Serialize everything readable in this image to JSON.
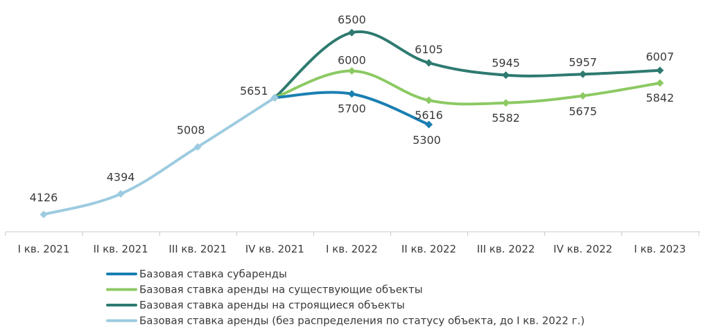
{
  "chart_data": {
    "type": "line",
    "categories": [
      "I кв. 2021",
      "II кв. 2021",
      "III кв. 2021",
      "IV кв. 2021",
      "I кв. 2022",
      "II кв. 2022",
      "III кв. 2022",
      "IV кв. 2022",
      "I кв. 2023"
    ],
    "series": [
      {
        "name": "Базовая ставка субаренды",
        "color": "#1a7fb2",
        "values": [
          null,
          null,
          null,
          5651,
          5700,
          5300,
          null,
          null,
          null
        ],
        "labels": [
          null,
          null,
          null,
          null,
          "5700",
          "5300",
          null,
          null,
          null
        ]
      },
      {
        "name": "Базовая ставка аренды на существующие объекты",
        "color": "#8cc963",
        "values": [
          null,
          null,
          null,
          5651,
          6000,
          5616,
          5582,
          5675,
          5842
        ],
        "labels": [
          null,
          null,
          null,
          null,
          "6000",
          "5616",
          "5582",
          "5675",
          "5842"
        ]
      },
      {
        "name": "Базовая ставка аренды на строящиеся объекты",
        "color": "#2e7a70",
        "values": [
          null,
          null,
          null,
          5651,
          6500,
          6105,
          5945,
          5957,
          6007
        ],
        "labels": [
          null,
          null,
          null,
          null,
          "6500",
          "6105",
          "5945",
          "5957",
          "6007"
        ]
      },
      {
        "name": "Базовая ставка аренды (без распределения по статусу объекта, до I кв. 2022 г.)",
        "color": "#9dcbe0",
        "values": [
          4126,
          4394,
          5008,
          5651,
          null,
          null,
          null,
          null,
          null
        ],
        "labels": [
          "4126",
          "4394",
          "5008",
          "5651",
          null,
          null,
          null,
          null,
          null
        ]
      }
    ],
    "legend_order": [
      0,
      1,
      2,
      3
    ],
    "ylim": [
      3900,
      6700
    ],
    "title": "",
    "xlabel": "",
    "ylabel": ""
  }
}
